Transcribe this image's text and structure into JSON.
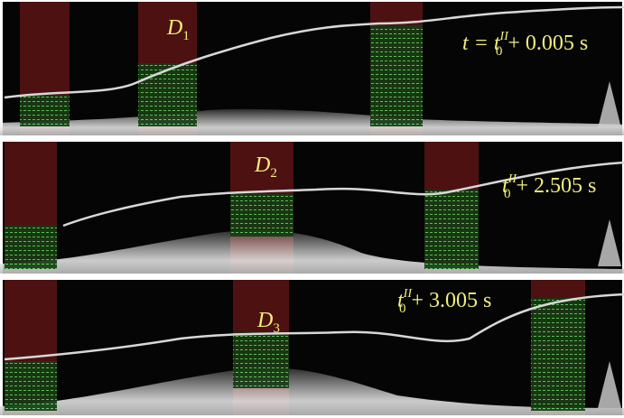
{
  "panels": [
    {
      "label": {
        "letter": "D",
        "sub": "1"
      },
      "time": {
        "lead": "t = ",
        "var": "t",
        "sub": "0",
        "sup": "II",
        "rest": " + 0.005 s"
      }
    },
    {
      "label": {
        "letter": "D",
        "sub": "2"
      },
      "time": {
        "var": "t",
        "sub": "0",
        "sup": "II",
        "rest": " + 2.505 s"
      }
    },
    {
      "label": {
        "letter": "D",
        "sub": "3"
      },
      "time": {
        "var": "t",
        "sub": "0",
        "sup": "II",
        "rest": " + 3.005 s"
      }
    }
  ]
}
